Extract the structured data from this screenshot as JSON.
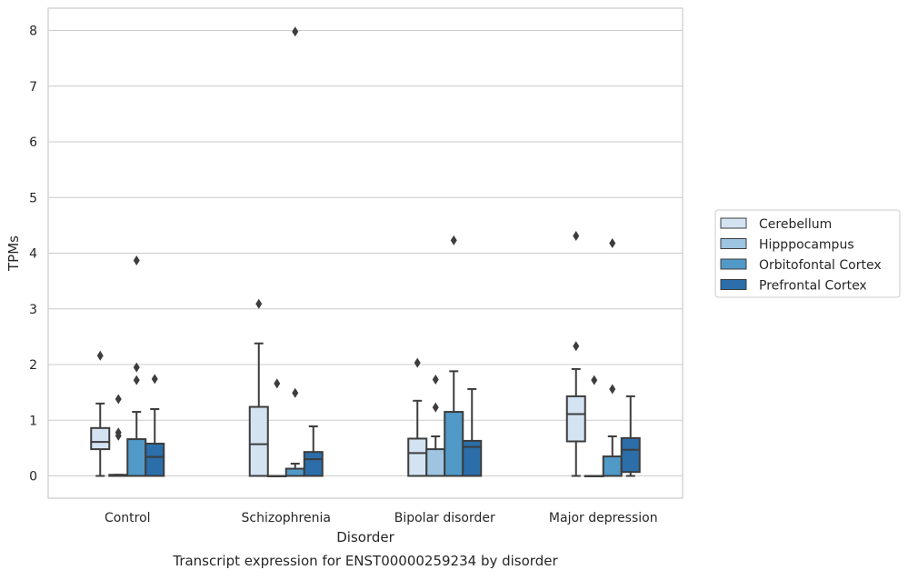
{
  "chart_data": {
    "type": "box",
    "title": "Transcript expression for ENST00000259234 by disorder",
    "xlabel": "Disorder",
    "ylabel": "TPMs",
    "ylim": [
      -0.4,
      8.4
    ],
    "yticks": [
      0,
      1,
      2,
      3,
      4,
      5,
      6,
      7,
      8
    ],
    "grid": true,
    "legend_position": "right",
    "categories": [
      "Control",
      "Schizophrenia",
      "Bipolar disorder",
      "Major depression"
    ],
    "series": [
      {
        "name": "Cerebellum",
        "color": "#d3e3f2",
        "boxes": [
          {
            "min": 0.0,
            "q1": 0.48,
            "median": 0.61,
            "q3": 0.86,
            "max": 1.3,
            "outliers": [
              2.16
            ]
          },
          {
            "min": 0.0,
            "q1": 0.0,
            "median": 0.57,
            "q3": 1.24,
            "max": 2.38,
            "outliers": [
              3.09
            ]
          },
          {
            "min": 0.0,
            "q1": 0.0,
            "median": 0.41,
            "q3": 0.67,
            "max": 1.35,
            "outliers": [
              2.03
            ]
          },
          {
            "min": 0.0,
            "q1": 0.62,
            "median": 1.11,
            "q3": 1.43,
            "max": 1.92,
            "outliers": [
              2.33,
              4.31
            ]
          }
        ]
      },
      {
        "name": "Hipppocampus",
        "color": "#9dc4e0",
        "boxes": [
          {
            "min": 0.0,
            "q1": 0.0,
            "median": 0.0,
            "q3": 0.02,
            "max": 0.02,
            "outliers": [
              0.72,
              0.78,
              1.38
            ]
          },
          {
            "min": 0.0,
            "q1": 0.0,
            "median": 0.0,
            "q3": 0.0,
            "max": 0.0,
            "outliers": [
              1.66
            ]
          },
          {
            "min": 0.0,
            "q1": 0.0,
            "median": 0.0,
            "q3": 0.48,
            "max": 0.71,
            "outliers": [
              1.23,
              1.73
            ]
          },
          {
            "min": 0.0,
            "q1": 0.0,
            "median": 0.0,
            "q3": 0.0,
            "max": 0.0,
            "outliers": [
              1.72
            ]
          }
        ]
      },
      {
        "name": "Orbitofontal Cortex",
        "color": "#5199c7",
        "boxes": [
          {
            "min": 0.0,
            "q1": 0.0,
            "median": 0.0,
            "q3": 0.66,
            "max": 1.15,
            "outliers": [
              1.72,
              1.95,
              3.87
            ]
          },
          {
            "min": 0.0,
            "q1": 0.0,
            "median": 0.0,
            "q3": 0.13,
            "max": 0.22,
            "outliers": [
              1.49,
              7.98
            ]
          },
          {
            "min": 0.0,
            "q1": 0.0,
            "median": 0.0,
            "q3": 1.15,
            "max": 1.88,
            "outliers": [
              4.23
            ]
          },
          {
            "min": 0.0,
            "q1": 0.0,
            "median": 0.0,
            "q3": 0.35,
            "max": 0.71,
            "outliers": [
              1.56,
              4.18
            ]
          }
        ]
      },
      {
        "name": "Prefrontal Cortex",
        "color": "#2b6ea9",
        "boxes": [
          {
            "min": 0.0,
            "q1": 0.0,
            "median": 0.34,
            "q3": 0.58,
            "max": 1.2,
            "outliers": [
              1.74
            ]
          },
          {
            "min": 0.0,
            "q1": 0.0,
            "median": 0.3,
            "q3": 0.43,
            "max": 0.89,
            "outliers": []
          },
          {
            "min": 0.0,
            "q1": 0.0,
            "median": 0.52,
            "q3": 0.63,
            "max": 1.56,
            "outliers": []
          },
          {
            "min": 0.0,
            "q1": 0.07,
            "median": 0.47,
            "q3": 0.68,
            "max": 1.43,
            "outliers": []
          }
        ]
      }
    ]
  }
}
